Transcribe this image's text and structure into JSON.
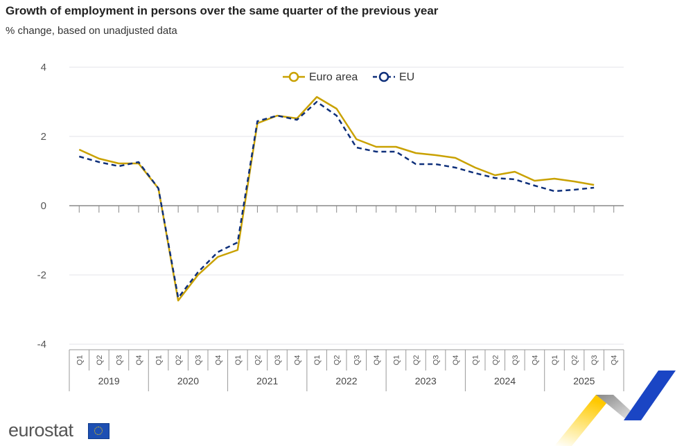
{
  "title": "Growth of employment in persons over the same quarter of the previous year",
  "subtitle": "% change, based on unadjusted data",
  "brand": "eurostat",
  "chart_data": {
    "type": "line",
    "ylim": [
      -4,
      4
    ],
    "yticks": [
      "4",
      "2",
      "0",
      "-2",
      "-4"
    ],
    "ytick_values": [
      4,
      2,
      0,
      -2,
      -4
    ],
    "grid": true,
    "legend_placement": "top-center",
    "years": [
      "2019",
      "2020",
      "2021",
      "2022",
      "2023",
      "2024",
      "2025"
    ],
    "quarters": [
      "Q1",
      "Q2",
      "Q3",
      "Q4"
    ],
    "series": [
      {
        "name": "Euro area",
        "color": "#c9a100",
        "style": "solid",
        "values": [
          1.62,
          1.36,
          1.22,
          1.22,
          0.5,
          -2.74,
          -2.0,
          -1.48,
          -1.28,
          2.38,
          2.6,
          2.52,
          3.14,
          2.8,
          1.92,
          1.7,
          1.7,
          1.52,
          1.46,
          1.38,
          1.1,
          0.88,
          0.98,
          0.72,
          0.78,
          0.7,
          0.6,
          null
        ]
      },
      {
        "name": "EU",
        "color": "#0e2f7a",
        "style": "dashed",
        "values": [
          1.42,
          1.26,
          1.14,
          1.26,
          0.5,
          -2.66,
          -1.92,
          -1.34,
          -1.06,
          2.44,
          2.6,
          2.48,
          3.0,
          2.6,
          1.68,
          1.56,
          1.56,
          1.2,
          1.2,
          1.1,
          0.94,
          0.8,
          0.76,
          0.58,
          0.42,
          0.46,
          0.52,
          null
        ]
      }
    ]
  }
}
